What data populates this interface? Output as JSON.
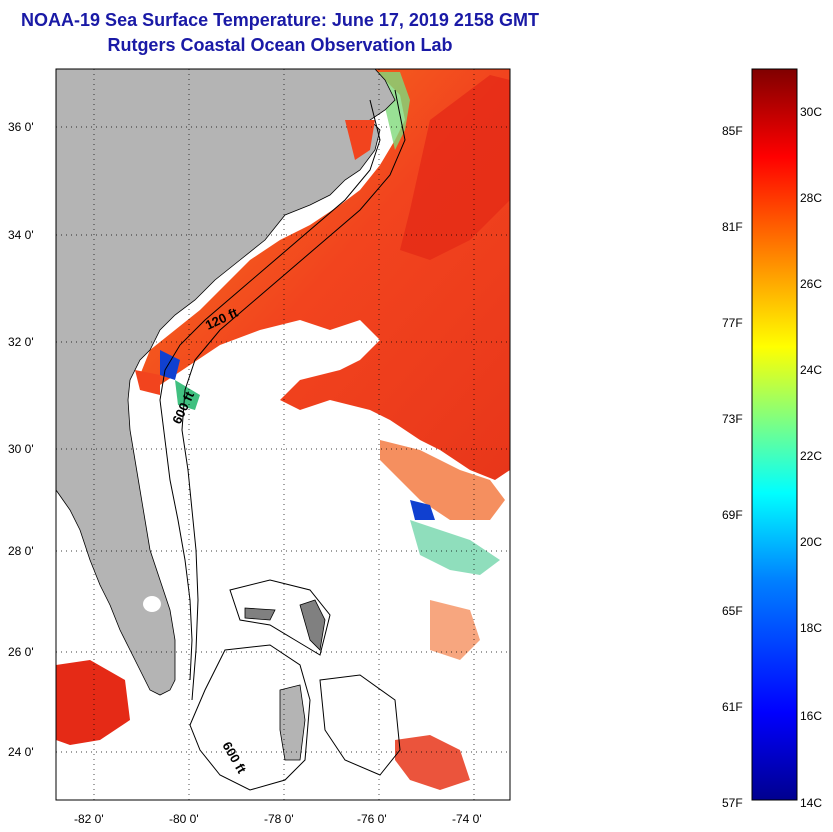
{
  "header": {
    "title": "NOAA-19 Sea Surface Temperature:  June 17, 2019 2158 GMT",
    "subtitle": "Rutgers Coastal Ocean Observation Lab"
  },
  "map": {
    "lat_ticks": [
      "36 0'",
      "34 0'",
      "32 0'",
      "30 0'",
      "28 0'",
      "26 0'",
      "24 0'"
    ],
    "lon_ticks": [
      "-82 0'",
      "-80 0'",
      "-78 0'",
      "-76 0'",
      "-74 0'"
    ],
    "contours": {
      "shelf": "120 ft",
      "slope": "600 ft",
      "bahamas": "600 ft"
    },
    "colors": {
      "land": "#b4b4b4",
      "ocean_clear": "#ffffff",
      "warm": "#f2441e",
      "hot": "#e01c12",
      "orange": "#f7801e"
    }
  },
  "colorbar": {
    "fahrenheit": [
      "85F",
      "81F",
      "77F",
      "73F",
      "69F",
      "65F",
      "61F",
      "57F"
    ],
    "celsius": [
      "30C",
      "28C",
      "26C",
      "24C",
      "22C",
      "20C",
      "18C",
      "16C",
      "14C"
    ],
    "gradient": [
      "#00008f",
      "#0000ff",
      "#0080ff",
      "#00ffff",
      "#80ff80",
      "#ffff00",
      "#ff8000",
      "#ff0000",
      "#800000"
    ]
  }
}
